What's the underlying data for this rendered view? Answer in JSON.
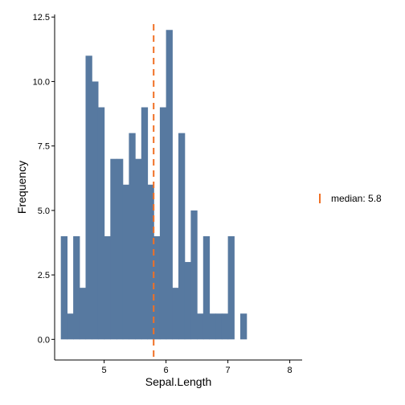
{
  "chart_data": {
    "type": "bar",
    "subtype": "histogram",
    "xlabel": "Sepal.Length",
    "ylabel": "Frequency",
    "xlim": [
      4.2,
      8.2
    ],
    "ylim": [
      -0.8,
      12.6
    ],
    "x_ticks": [
      5,
      6,
      7,
      8
    ],
    "x_tick_labels": [
      "5",
      "6",
      "7",
      "8"
    ],
    "y_ticks": [
      0,
      2.5,
      5,
      7.5,
      10,
      12.5
    ],
    "y_tick_labels": [
      "0.0",
      "2.5",
      "5.0",
      "7.5",
      "10.0",
      "12.5"
    ],
    "bin_width": 0.1,
    "bins": [
      {
        "x": 4.3,
        "count": 4
      },
      {
        "x": 4.4,
        "count": 1
      },
      {
        "x": 4.5,
        "count": 4
      },
      {
        "x": 4.6,
        "count": 2
      },
      {
        "x": 4.7,
        "count": 11
      },
      {
        "x": 4.8,
        "count": 10
      },
      {
        "x": 4.9,
        "count": 9
      },
      {
        "x": 5.0,
        "count": 4
      },
      {
        "x": 5.1,
        "count": 7
      },
      {
        "x": 5.2,
        "count": 7
      },
      {
        "x": 5.3,
        "count": 6
      },
      {
        "x": 5.4,
        "count": 8
      },
      {
        "x": 5.5,
        "count": 7
      },
      {
        "x": 5.6,
        "count": 9
      },
      {
        "x": 5.7,
        "count": 6
      },
      {
        "x": 5.8,
        "count": 4
      },
      {
        "x": 5.9,
        "count": 9
      },
      {
        "x": 6.0,
        "count": 12
      },
      {
        "x": 6.1,
        "count": 2
      },
      {
        "x": 6.2,
        "count": 8
      },
      {
        "x": 6.3,
        "count": 3
      },
      {
        "x": 6.4,
        "count": 5
      },
      {
        "x": 6.5,
        "count": 1
      },
      {
        "x": 6.6,
        "count": 4
      },
      {
        "x": 6.7,
        "count": 1
      },
      {
        "x": 6.8,
        "count": 1
      },
      {
        "x": 6.9,
        "count": 1
      },
      {
        "x": 7.0,
        "count": 4
      },
      {
        "x": 7.1,
        "count": 0
      },
      {
        "x": 7.2,
        "count": 1
      }
    ],
    "median": 5.8,
    "legend": {
      "label": "median: 5.8",
      "position": "right"
    },
    "colors": {
      "bar": "#5779a0",
      "median_line": "#f07025"
    },
    "grid": false
  }
}
